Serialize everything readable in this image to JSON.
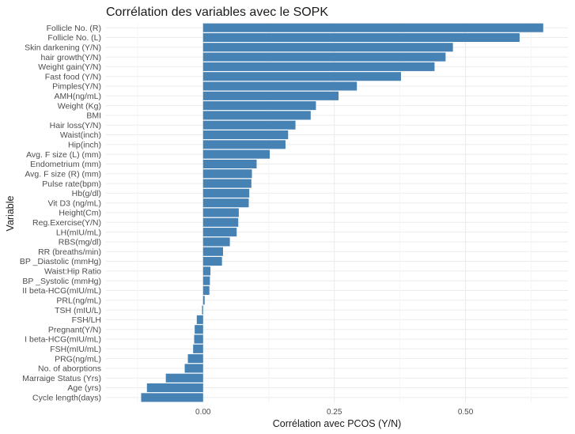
{
  "chart_data": {
    "type": "bar",
    "orientation": "horizontal",
    "title": "Corrélation des variables avec le SOPK",
    "xlabel": "Corrélation avec PCOS (Y/N)",
    "ylabel": "Variable",
    "xlim": [
      -0.185,
      0.695
    ],
    "xticks": [
      0.0,
      0.25,
      0.5
    ],
    "xtick_labels": [
      "0.00",
      "0.25",
      "0.50"
    ],
    "grid": true,
    "bar_color": "#4682B4",
    "categories": [
      "Follicle No. (R)",
      "Follicle No. (L)",
      "Skin darkening (Y/N)",
      "hair growth(Y/N)",
      "Weight gain(Y/N)",
      "Fast food (Y/N)",
      "Pimples(Y/N)",
      "AMH(ng/mL)",
      "Weight (Kg)",
      "BMI",
      "Hair loss(Y/N)",
      "Waist(inch)",
      "Hip(inch)",
      "Avg. F size (L) (mm)",
      "Endometrium (mm)",
      "Avg. F size (R) (mm)",
      "Pulse rate(bpm)",
      "Hb(g/dl)",
      "Vit D3 (ng/mL)",
      "Height(Cm)",
      "Reg.Exercise(Y/N)",
      "LH(mIU/mL)",
      "RBS(mg/dl)",
      "RR (breaths/min)",
      "BP _Diastolic (mmHg)",
      "Waist:Hip Ratio",
      "BP _Systolic (mmHg)",
      "II    beta-HCG(mIU/mL)",
      "PRL(ng/mL)",
      "TSH (mIU/L)",
      "FSH/LH",
      "Pregnant(Y/N)",
      "I   beta-HCG(mIU/mL)",
      "FSH(mIU/mL)",
      "PRG(ng/mL)",
      "No. of aborptions",
      "Marraige Status (Yrs)",
      "Age (yrs)",
      "Cycle length(days)"
    ],
    "values": [
      0.648,
      0.603,
      0.476,
      0.462,
      0.441,
      0.377,
      0.293,
      0.258,
      0.215,
      0.205,
      0.176,
      0.162,
      0.157,
      0.127,
      0.102,
      0.093,
      0.092,
      0.088,
      0.087,
      0.068,
      0.067,
      0.064,
      0.051,
      0.038,
      0.036,
      0.014,
      0.013,
      0.012,
      0.003,
      -0.002,
      -0.012,
      -0.016,
      -0.017,
      -0.019,
      -0.029,
      -0.035,
      -0.071,
      -0.107,
      -0.118
    ]
  }
}
